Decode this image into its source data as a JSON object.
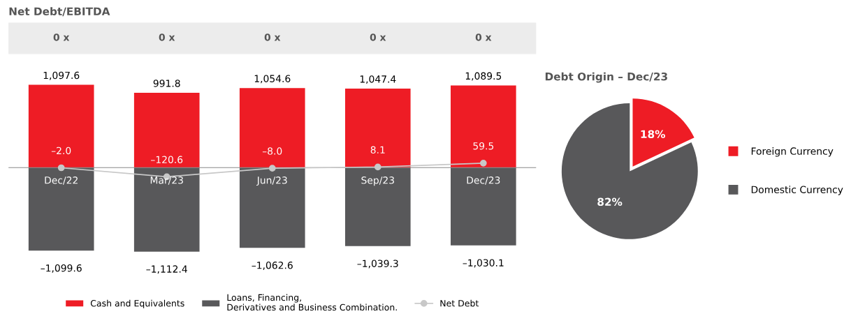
{
  "chart_data": [
    {
      "type": "bar",
      "title": "Net Debt/EBITDA",
      "categories": [
        "Dec/22",
        "Mar/23",
        "Jun/23",
        "Sep/23",
        "Dec/23"
      ],
      "stacked": true,
      "legend": "bottom",
      "annotations": [
        "0 x",
        "0 x",
        "0 x",
        "0 x",
        "0 x"
      ],
      "series": [
        {
          "name": "Cash and Equivalents",
          "color": "#ee1c25",
          "values": [
            1097.6,
            991.8,
            1054.6,
            1047.4,
            1089.5
          ],
          "value_labels": [
            "1,097.6",
            "991.8",
            "1,054.6",
            "1,047.4",
            "1,089.5"
          ]
        },
        {
          "name": "Loans, Financing,\nDerivatives and Business Combination.",
          "color": "#58585a",
          "values": [
            -1099.6,
            -1112.4,
            -1062.6,
            -1039.3,
            -1030.1
          ],
          "value_labels": [
            "–1,099.6",
            "–1,112.4",
            "–1,062.6",
            "–1,039.3",
            "–1,030.1"
          ]
        },
        {
          "name": "Net Debt",
          "type": "line",
          "color": "#c8c8c8",
          "marker": "circle",
          "values": [
            -2.0,
            -120.6,
            -8.0,
            8.1,
            59.5
          ],
          "value_labels": [
            "–2.0",
            "–120.6",
            "–8.0",
            "8.1",
            "59.5"
          ]
        }
      ]
    },
    {
      "type": "pie",
      "title": "Debt Origin – Dec/23",
      "categories": [
        "Foreign Currency",
        "Domestic Currency"
      ],
      "values": [
        18,
        82
      ],
      "colors": [
        "#ee1c25",
        "#58585a"
      ],
      "value_labels": [
        "18%",
        "82%"
      ],
      "legend": "right"
    }
  ]
}
